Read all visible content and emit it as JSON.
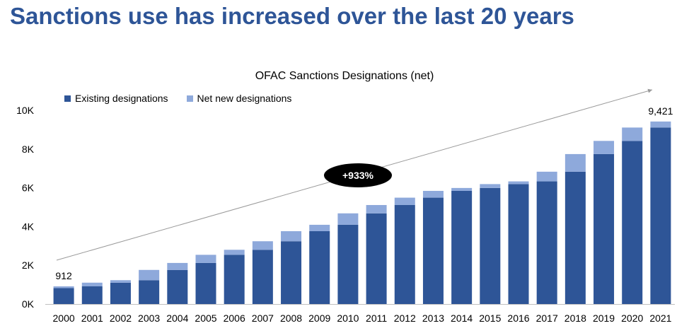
{
  "slide_title": "Sanctions use has increased over the last 20 years",
  "colors": {
    "existing": "#2E5597",
    "net_new": "#8EA9DB",
    "title": "#2E5597"
  },
  "chart_data": {
    "type": "bar",
    "stacked": true,
    "title": "OFAC Sanctions Designations (net)",
    "categories": [
      "2000",
      "2001",
      "2002",
      "2003",
      "2004",
      "2005",
      "2006",
      "2007",
      "2008",
      "2009",
      "2010",
      "2011",
      "2012",
      "2013",
      "2014",
      "2015",
      "2016",
      "2017",
      "2018",
      "2019",
      "2020",
      "2021"
    ],
    "series": [
      {
        "name": "Existing designations",
        "values": [
          820,
          912,
          1100,
          1230,
          1760,
          2120,
          2540,
          2800,
          3240,
          3760,
          4090,
          4680,
          5110,
          5490,
          5840,
          5990,
          6190,
          6330,
          6830,
          7740,
          8420,
          9110
        ]
      },
      {
        "name": "Net new designations",
        "values": [
          92,
          190,
          130,
          530,
          360,
          420,
          260,
          440,
          520,
          330,
          590,
          430,
          380,
          350,
          150,
          200,
          140,
          500,
          910,
          680,
          690,
          311
        ]
      }
    ],
    "ylim": [
      0,
      10000
    ],
    "yticks": [
      "0K",
      "2K",
      "4K",
      "6K",
      "8K",
      "10K"
    ],
    "data_labels": [
      {
        "category": "2000",
        "text": "912"
      },
      {
        "category": "2021",
        "text": "9,421"
      }
    ],
    "annotation": "+933%",
    "legend_position": "top-left",
    "grid": false
  }
}
